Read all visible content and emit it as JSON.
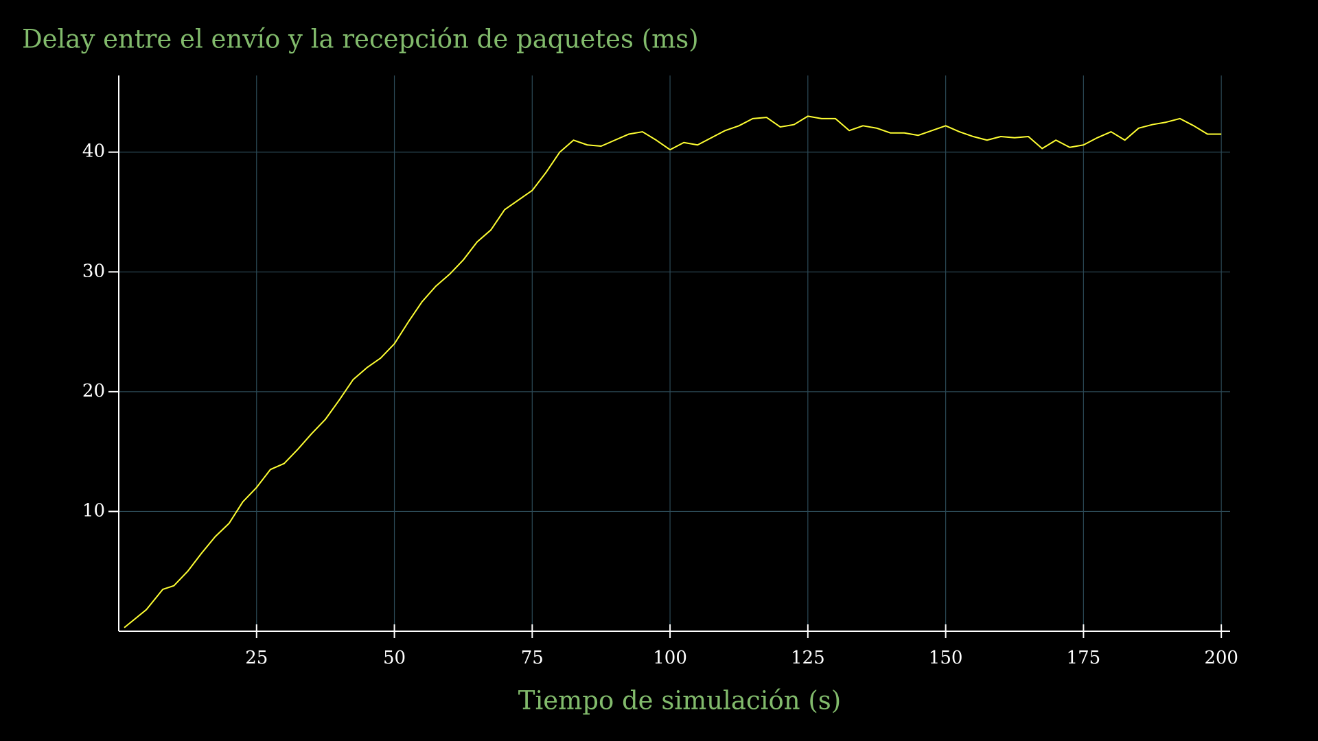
{
  "chart_data": {
    "type": "line",
    "title": "Delay entre el envío y la recepción de paquetes (ms)",
    "xlabel": "Tiempo de simulación (s)",
    "x": [
      1,
      5,
      8,
      10,
      12.5,
      15,
      17.5,
      20,
      22.5,
      25,
      27.5,
      30,
      32.5,
      35,
      37.5,
      40,
      42.5,
      45,
      47.5,
      50,
      52.5,
      55,
      57.5,
      60,
      62.5,
      65,
      67.5,
      70,
      72.5,
      75,
      77.5,
      80,
      82.5,
      85,
      87.5,
      90,
      92.5,
      95,
      97.5,
      100,
      102.5,
      105,
      107.5,
      110,
      112.5,
      115,
      117.5,
      120,
      122.5,
      125,
      127.5,
      130,
      132.5,
      135,
      137.5,
      140,
      142.5,
      145,
      147.5,
      150,
      152.5,
      155,
      157.5,
      160,
      162.5,
      165,
      167.5,
      170,
      172.5,
      175,
      177.5,
      180,
      182.5,
      185,
      187.5,
      190,
      192.5,
      195,
      197.5,
      200
    ],
    "series": [
      {
        "name": "delay",
        "color": "#ffff33",
        "values": [
          0.3,
          1.8,
          3.5,
          3.8,
          5.0,
          6.5,
          7.9,
          9.0,
          10.8,
          12.0,
          13.5,
          14.0,
          15.2,
          16.5,
          17.7,
          19.3,
          21.0,
          22.0,
          22.8,
          24.0,
          25.8,
          27.5,
          28.8,
          29.8,
          31.0,
          32.5,
          33.5,
          35.2,
          36.0,
          36.8,
          38.3,
          40.0,
          41.0,
          40.6,
          40.5,
          41.0,
          41.5,
          41.7,
          41.0,
          40.2,
          40.8,
          40.6,
          41.2,
          41.8,
          42.2,
          42.8,
          42.9,
          42.1,
          42.3,
          43.0,
          42.8,
          42.8,
          41.8,
          42.2,
          42.0,
          41.6,
          41.6,
          41.4,
          41.8,
          42.2,
          41.7,
          41.3,
          41.0,
          41.3,
          41.2,
          41.3,
          40.3,
          41.0,
          40.4,
          40.6,
          41.2,
          41.7,
          41.0,
          42.0,
          42.3,
          42.5,
          42.8,
          42.2,
          41.5,
          41.5
        ]
      }
    ],
    "xlim": [
      0,
      201.6
    ],
    "ylim": [
      0,
      46.4
    ],
    "xticks": [
      25,
      50,
      75,
      100,
      125,
      150,
      175,
      200
    ],
    "yticks": [
      10,
      20,
      30,
      40
    ],
    "grid": true
  }
}
